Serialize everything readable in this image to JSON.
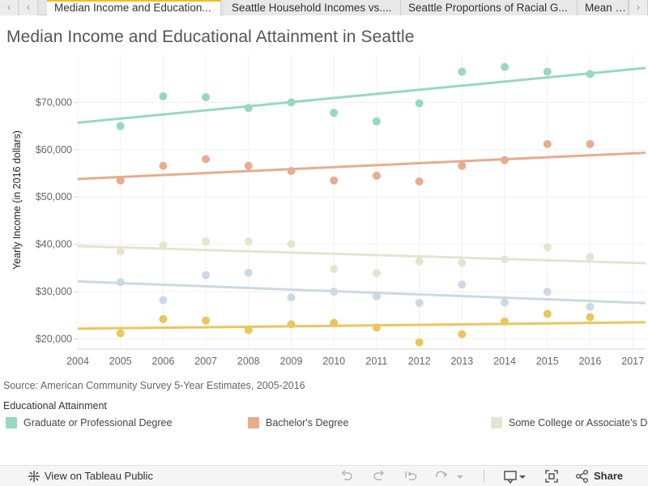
{
  "tabs": [
    {
      "label": "Median Income and Education..."
    },
    {
      "label": "Seattle Household Incomes vs...."
    },
    {
      "label": "Seattle Proportions of Racial G..."
    },
    {
      "label": "Mean Inc"
    }
  ],
  "title": "Median Income and Educational Attainment in Seattle",
  "colors": {
    "graduate": "#97d8c2",
    "bachelor": "#e6ad8e",
    "some_college": "#e6e4cf",
    "high_school": "#cbd9e3",
    "less_than_hs": "#ebc65e",
    "active_tab_accent": "#f2bd2b"
  },
  "chart_data": {
    "type": "scatter",
    "ylabel": "Yearly Income (in 2016 dollars)",
    "x_ticks": [
      "2004",
      "2005",
      "2006",
      "2007",
      "2008",
      "2009",
      "2010",
      "2011",
      "2012",
      "2013",
      "2014",
      "2015",
      "2016",
      "2017"
    ],
    "y_ticks": [
      "$20,000",
      "$30,000",
      "$40,000",
      "$50,000",
      "$60,000",
      "$70,000"
    ],
    "x_range": [
      2004,
      2017.3
    ],
    "y_range": [
      18200,
      80000
    ],
    "grid": true,
    "trend_lines": true,
    "series": [
      {
        "name": "Graduate or Professional Degree",
        "color_key": "graduate",
        "x": [
          2005,
          2006,
          2007,
          2008,
          2009,
          2010,
          2011,
          2012,
          2013,
          2014,
          2015,
          2016
        ],
        "y": [
          65000,
          71300,
          71100,
          68800,
          70000,
          67800,
          66000,
          69800,
          76500,
          77500,
          76500,
          76000
        ]
      },
      {
        "name": "Bachelor's Degree",
        "color_key": "bachelor",
        "x": [
          2005,
          2006,
          2007,
          2008,
          2009,
          2010,
          2011,
          2012,
          2013,
          2014,
          2015,
          2016
        ],
        "y": [
          53500,
          56600,
          58000,
          56600,
          55500,
          53500,
          54500,
          53300,
          56600,
          57800,
          61200,
          61200
        ]
      },
      {
        "name": "Some College or Associate's Degree",
        "color_key": "some_college",
        "x": [
          2005,
          2006,
          2007,
          2008,
          2009,
          2010,
          2011,
          2012,
          2013,
          2014,
          2015,
          2016
        ],
        "y": [
          38500,
          39800,
          40600,
          40600,
          40100,
          34800,
          33900,
          36400,
          36100,
          36800,
          39400,
          37300
        ]
      },
      {
        "name": "",
        "color_key": "high_school",
        "x": [
          2005,
          2006,
          2007,
          2008,
          2009,
          2010,
          2011,
          2012,
          2013,
          2014,
          2015,
          2016
        ],
        "y": [
          32000,
          28200,
          33500,
          34000,
          28800,
          30000,
          29000,
          27600,
          31500,
          27700,
          30000,
          26800
        ]
      },
      {
        "name": "",
        "color_key": "less_than_hs",
        "x": [
          2005,
          2006,
          2007,
          2008,
          2009,
          2010,
          2011,
          2012,
          2013,
          2014,
          2015,
          2016
        ],
        "y": [
          21200,
          24200,
          23900,
          21900,
          23100,
          23400,
          22400,
          19300,
          21000,
          23700,
          25300,
          24600
        ]
      }
    ]
  },
  "source_note": "Source: American Community Survey 5-Year Estimates, 2005-2016",
  "legend": {
    "title": "Educational Attainment",
    "items": [
      {
        "label": "Graduate or Professional Degree",
        "color_key": "graduate"
      },
      {
        "label": "Bachelor's Degree",
        "color_key": "bachelor"
      },
      {
        "label": "Some College or Associate's De",
        "color_key": "some_college"
      }
    ]
  },
  "toolbar": {
    "view_label": "View on Tableau Public",
    "share_label": "Share"
  }
}
